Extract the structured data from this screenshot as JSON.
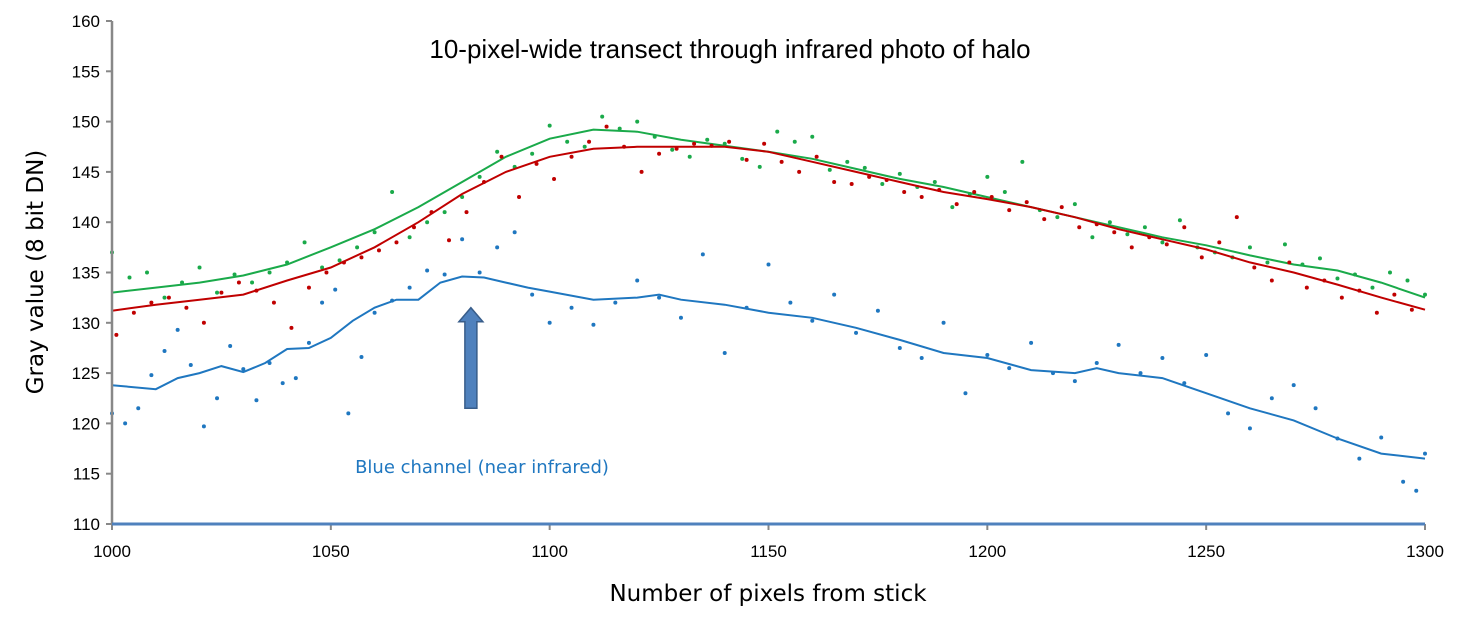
{
  "chart_data": {
    "type": "scatter",
    "title": "10-pixel-wide transect through infrared photo of halo",
    "xlabel": "Number of pixels from stick",
    "ylabel": "Gray value (8 bit DN)",
    "xlim": [
      1000,
      1300
    ],
    "ylim": [
      110,
      160
    ],
    "xticks": [
      1000,
      1050,
      1100,
      1150,
      1200,
      1250,
      1300
    ],
    "yticks": [
      110,
      115,
      120,
      125,
      130,
      135,
      140,
      145,
      150,
      155,
      160
    ],
    "grid": false,
    "annotation": {
      "text": "Blue channel (near infrared)",
      "arrow_x": 1082,
      "arrow_from_y": 121.5,
      "arrow_to_y": 131.5,
      "color": "#1f77c0"
    },
    "series": [
      {
        "name": "green",
        "color": "#1aaa4a",
        "smooth_x": [
          1000,
          1010,
          1020,
          1030,
          1040,
          1050,
          1060,
          1070,
          1080,
          1090,
          1100,
          1110,
          1120,
          1130,
          1140,
          1150,
          1160,
          1170,
          1180,
          1190,
          1200,
          1210,
          1220,
          1230,
          1240,
          1250,
          1260,
          1270,
          1280,
          1290,
          1300
        ],
        "smooth_y": [
          133,
          133.5,
          134,
          134.7,
          135.8,
          137.5,
          139.3,
          141.5,
          144,
          146.5,
          148.3,
          149.2,
          149,
          148.2,
          147.6,
          147,
          146.3,
          145.3,
          144.3,
          143.5,
          142.5,
          141.5,
          140.5,
          139.5,
          138.5,
          137.7,
          136.7,
          135.8,
          135.2,
          134,
          132.5
        ],
        "points_x": [
          1000,
          1004,
          1008,
          1012,
          1016,
          1020,
          1024,
          1028,
          1032,
          1036,
          1040,
          1044,
          1048,
          1052,
          1056,
          1060,
          1064,
          1068,
          1072,
          1076,
          1080,
          1084,
          1088,
          1092,
          1096,
          1100,
          1104,
          1108,
          1112,
          1116,
          1120,
          1124,
          1128,
          1132,
          1136,
          1140,
          1144,
          1148,
          1152,
          1156,
          1160,
          1164,
          1168,
          1172,
          1176,
          1180,
          1184,
          1188,
          1192,
          1196,
          1200,
          1204,
          1208,
          1212,
          1216,
          1220,
          1224,
          1228,
          1232,
          1236,
          1240,
          1244,
          1248,
          1252,
          1256,
          1260,
          1264,
          1268,
          1272,
          1276,
          1280,
          1284,
          1288,
          1292,
          1296,
          1300
        ],
        "points_y": [
          137,
          134.5,
          135,
          132.5,
          134,
          135.5,
          133,
          134.8,
          134,
          135,
          136,
          138,
          135.5,
          136.2,
          137.5,
          139,
          143,
          138.5,
          140,
          141,
          142.5,
          144.5,
          147,
          145.5,
          146.8,
          149.6,
          148,
          147.5,
          150.5,
          149.3,
          150,
          148.5,
          147.2,
          146.5,
          148.2,
          147.8,
          146.3,
          145.5,
          149,
          148,
          148.5,
          145.2,
          146,
          145.4,
          143.8,
          144.8,
          143.5,
          144,
          141.5,
          142.8,
          144.5,
          143,
          146,
          141.2,
          140.5,
          141.8,
          138.5,
          140,
          138.8,
          139.5,
          138,
          140.2,
          137.5,
          137,
          136.5,
          137.5,
          136,
          137.8,
          135.8,
          136.4,
          134.4,
          134.8,
          133.5,
          135,
          134.2,
          132.8
        ]
      },
      {
        "name": "red",
        "color": "#c00000",
        "smooth_x": [
          1000,
          1010,
          1020,
          1030,
          1040,
          1050,
          1060,
          1070,
          1080,
          1090,
          1100,
          1110,
          1120,
          1130,
          1140,
          1150,
          1160,
          1170,
          1180,
          1190,
          1200,
          1210,
          1220,
          1230,
          1240,
          1250,
          1260,
          1270,
          1280,
          1290,
          1300
        ],
        "smooth_y": [
          131.2,
          131.8,
          132.3,
          132.8,
          134.2,
          135.5,
          137.5,
          140,
          142.8,
          145,
          146.5,
          147.3,
          147.5,
          147.5,
          147.5,
          147,
          146,
          145,
          144,
          143,
          142.3,
          141.5,
          140.5,
          139.3,
          138.3,
          137.3,
          136,
          135,
          133.8,
          132.5,
          131.3
        ],
        "points_x": [
          1001,
          1005,
          1009,
          1013,
          1017,
          1021,
          1025,
          1029,
          1033,
          1037,
          1041,
          1045,
          1049,
          1053,
          1057,
          1061,
          1065,
          1069,
          1073,
          1077,
          1081,
          1085,
          1089,
          1093,
          1097,
          1101,
          1105,
          1109,
          1113,
          1117,
          1121,
          1125,
          1129,
          1133,
          1137,
          1141,
          1145,
          1149,
          1153,
          1157,
          1161,
          1165,
          1169,
          1173,
          1177,
          1181,
          1185,
          1189,
          1193,
          1197,
          1201,
          1205,
          1209,
          1213,
          1217,
          1221,
          1225,
          1229,
          1233,
          1237,
          1241,
          1245,
          1249,
          1253,
          1257,
          1261,
          1265,
          1269,
          1273,
          1277,
          1281,
          1285,
          1289,
          1293,
          1297
        ],
        "points_y": [
          128.8,
          131,
          132,
          132.5,
          131.5,
          130,
          133,
          134,
          133.2,
          132,
          129.5,
          133.5,
          135,
          136,
          136.5,
          137.2,
          138,
          139.5,
          141,
          138.2,
          141,
          144,
          146.5,
          142.5,
          145.8,
          144.3,
          146.5,
          148,
          149.5,
          147.5,
          145,
          146.8,
          147.3,
          147.8,
          147.6,
          148,
          146.2,
          147.8,
          146,
          145,
          146.5,
          144,
          143.8,
          144.5,
          144.2,
          143,
          142.5,
          143.2,
          141.8,
          143,
          142.5,
          141.2,
          142,
          140.3,
          141.5,
          139.5,
          139.8,
          139,
          137.5,
          138.5,
          137.8,
          139.5,
          136.5,
          138,
          140.5,
          135.5,
          134.2,
          136,
          133.5,
          134.2,
          132.5,
          133.2,
          131,
          132.8,
          131.3
        ]
      },
      {
        "name": "blue",
        "color": "#1f77c0",
        "smooth_x": [
          1000,
          1010,
          1015,
          1020,
          1025,
          1030,
          1035,
          1040,
          1045,
          1050,
          1055,
          1060,
          1065,
          1070,
          1075,
          1080,
          1085,
          1090,
          1095,
          1100,
          1110,
          1120,
          1125,
          1130,
          1140,
          1150,
          1160,
          1170,
          1180,
          1190,
          1200,
          1210,
          1220,
          1225,
          1230,
          1240,
          1250,
          1260,
          1270,
          1280,
          1290,
          1300
        ],
        "smooth_y": [
          123.8,
          123.4,
          124.5,
          125,
          125.7,
          125.1,
          126,
          127.4,
          127.5,
          128.5,
          130.2,
          131.5,
          132.3,
          132.3,
          134,
          134.6,
          134.5,
          134,
          133.5,
          133.1,
          132.3,
          132.5,
          132.8,
          132.3,
          131.8,
          131,
          130.5,
          129.5,
          128.3,
          127,
          126.5,
          125.3,
          125,
          125.5,
          125,
          124.5,
          123,
          121.5,
          120.3,
          118.5,
          117,
          116.5
        ],
        "points_x": [
          1000,
          1003,
          1006,
          1009,
          1012,
          1015,
          1018,
          1021,
          1024,
          1027,
          1030,
          1033,
          1036,
          1039,
          1042,
          1045,
          1048,
          1051,
          1054,
          1057,
          1060,
          1064,
          1068,
          1072,
          1076,
          1080,
          1084,
          1088,
          1092,
          1096,
          1100,
          1105,
          1110,
          1115,
          1120,
          1125,
          1130,
          1135,
          1140,
          1145,
          1150,
          1155,
          1160,
          1165,
          1170,
          1175,
          1180,
          1185,
          1190,
          1195,
          1200,
          1205,
          1210,
          1215,
          1220,
          1225,
          1230,
          1235,
          1240,
          1245,
          1250,
          1255,
          1260,
          1265,
          1270,
          1275,
          1280,
          1285,
          1290,
          1295,
          1298,
          1300
        ],
        "points_y": [
          121,
          120,
          121.5,
          124.8,
          127.2,
          129.3,
          125.8,
          119.7,
          122.5,
          127.7,
          125.4,
          122.3,
          126,
          124,
          124.5,
          128,
          132,
          133.3,
          121,
          126.6,
          131,
          132.2,
          133.5,
          135.2,
          134.8,
          138.3,
          135,
          137.5,
          139,
          132.8,
          130,
          131.5,
          129.8,
          132,
          134.2,
          132.5,
          130.5,
          136.8,
          127,
          131.5,
          135.8,
          132,
          130.2,
          132.8,
          129,
          131.2,
          127.5,
          126.5,
          130,
          123,
          126.8,
          125.5,
          128,
          125,
          124.2,
          126,
          127.8,
          125,
          126.5,
          124,
          126.8,
          121,
          119.5,
          122.5,
          123.8,
          121.5,
          118.5,
          116.5,
          118.6,
          114.2,
          113.3,
          117
        ]
      }
    ]
  }
}
